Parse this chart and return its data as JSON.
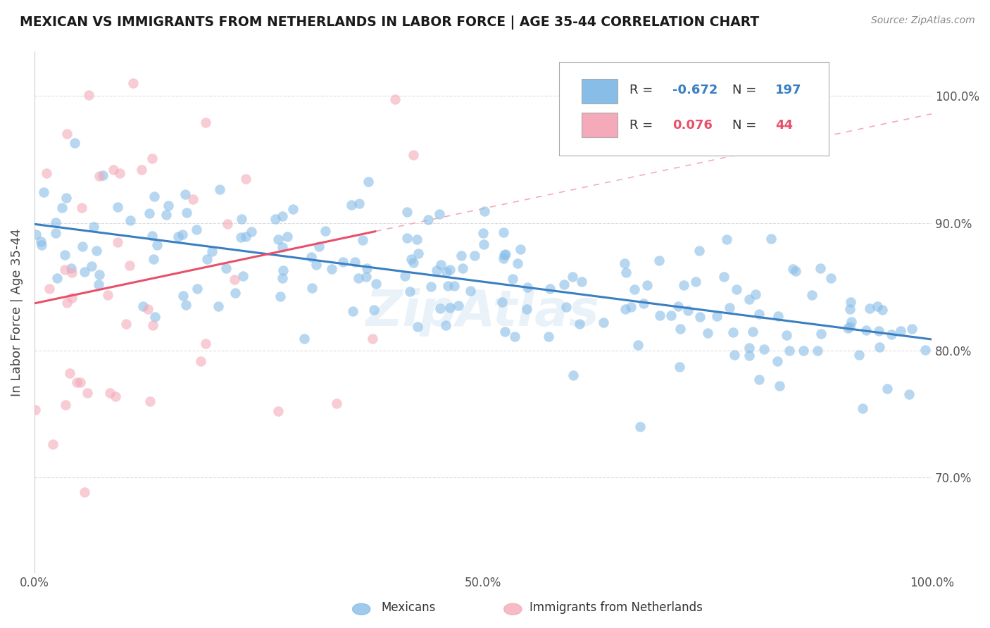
{
  "title": "MEXICAN VS IMMIGRANTS FROM NETHERLANDS IN LABOR FORCE | AGE 35-44 CORRELATION CHART",
  "source": "Source: ZipAtlas.com",
  "ylabel": "In Labor Force | Age 35-44",
  "xlim": [
    0.0,
    1.0
  ],
  "ylim": [
    0.625,
    1.035
  ],
  "yticks": [
    0.7,
    0.8,
    0.9,
    1.0
  ],
  "ytick_labels": [
    "70.0%",
    "80.0%",
    "90.0%",
    "100.0%"
  ],
  "xticks": [
    0.0,
    0.5,
    1.0
  ],
  "xtick_labels": [
    "0.0%",
    "50.0%",
    "100.0%"
  ],
  "blue_color": "#88bde8",
  "pink_color": "#f4aab8",
  "blue_line_color": "#3a7fc1",
  "pink_line_color": "#e8506a",
  "pink_dash_color": "#f4aab8",
  "grid_color": "#dddddd",
  "background_color": "#ffffff",
  "watermark": "ZipAtlas",
  "legend_labels_bottom": [
    "Mexicans",
    "Immigrants from Netherlands"
  ],
  "blue_R": -0.672,
  "blue_N": 197,
  "pink_R": 0.076,
  "pink_N": 44,
  "blue_R_color": "#3a7fc1",
  "blue_N_color": "#3a7fc1",
  "pink_R_color": "#e8506a",
  "pink_N_color": "#e8506a",
  "legend_R_label_blue": "R = ",
  "legend_R_val_blue": "-0.672",
  "legend_N_label_blue": "N = ",
  "legend_N_val_blue": "197",
  "legend_R_label_pink": "R = ",
  "legend_R_val_pink": "0.076",
  "legend_N_label_pink": "N = ",
  "legend_N_val_pink": "44"
}
